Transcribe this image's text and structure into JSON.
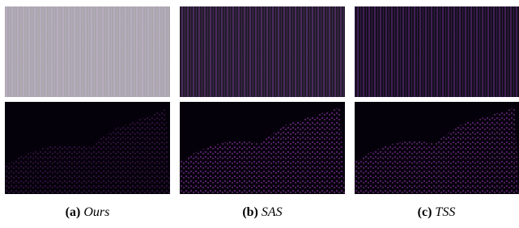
{
  "subfigures": [
    {
      "label": "(a)",
      "name": "Ours"
    },
    {
      "label": "(b)",
      "name": "SAS"
    },
    {
      "label": "(c)",
      "name": "TSS"
    }
  ]
}
